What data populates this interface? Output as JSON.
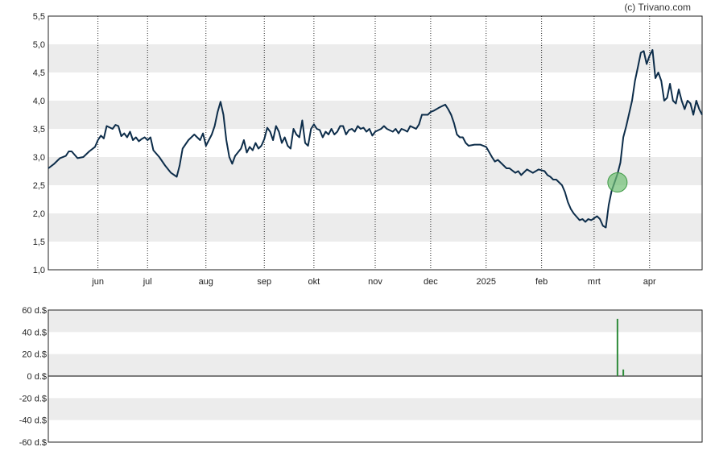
{
  "credit": "(c) Trivano.com",
  "colors": {
    "price_line": "#0d2d4a",
    "band": "#ececec",
    "volume_bar": "#2e8b3a",
    "marker_fill": "#6fbf73",
    "marker_stroke": "#3f9a46",
    "grid": "#222222"
  },
  "chart_data": [
    {
      "type": "line",
      "ylim": [
        1.0,
        5.5
      ],
      "y_ticks": [
        "1,0",
        "1,5",
        "2,0",
        "2,5",
        "3,0",
        "3,5",
        "4,0",
        "4,5",
        "5,0",
        "5,5"
      ],
      "x_ticks": [
        "jun",
        "jul",
        "aug",
        "sep",
        "okt",
        "nov",
        "dec",
        "2025",
        "feb",
        "mrt",
        "apr"
      ],
      "x_tick_positions": [
        8.5,
        17,
        27,
        37,
        45.5,
        56,
        65.5,
        75,
        84.5,
        93.5,
        103
      ],
      "xlim": [
        0,
        112
      ],
      "grid": "vertical dotted at month ticks, alternating horizontal bands",
      "marker": {
        "x": 97.5,
        "y": 2.55
      },
      "series": [
        {
          "values": [
            [
              0,
              2.8
            ],
            [
              1,
              2.88
            ],
            [
              2,
              2.98
            ],
            [
              3,
              3.02
            ],
            [
              3.5,
              3.1
            ],
            [
              4,
              3.1
            ],
            [
              5,
              2.98
            ],
            [
              6,
              3.0
            ],
            [
              7,
              3.1
            ],
            [
              8,
              3.18
            ],
            [
              8.5,
              3.3
            ],
            [
              9,
              3.38
            ],
            [
              9.5,
              3.33
            ],
            [
              10,
              3.55
            ],
            [
              11,
              3.5
            ],
            [
              11.5,
              3.57
            ],
            [
              12,
              3.55
            ],
            [
              12.5,
              3.37
            ],
            [
              13,
              3.42
            ],
            [
              13.5,
              3.35
            ],
            [
              14,
              3.45
            ],
            [
              14.5,
              3.3
            ],
            [
              15,
              3.35
            ],
            [
              15.5,
              3.28
            ],
            [
              16,
              3.32
            ],
            [
              16.5,
              3.35
            ],
            [
              17,
              3.3
            ],
            [
              17.5,
              3.35
            ],
            [
              18,
              3.12
            ],
            [
              19,
              3.0
            ],
            [
              20,
              2.85
            ],
            [
              21,
              2.72
            ],
            [
              22,
              2.65
            ],
            [
              22.5,
              2.85
            ],
            [
              23,
              3.15
            ],
            [
              24,
              3.3
            ],
            [
              25,
              3.4
            ],
            [
              26,
              3.3
            ],
            [
              26.5,
              3.42
            ],
            [
              27,
              3.2
            ],
            [
              28,
              3.4
            ],
            [
              28.5,
              3.55
            ],
            [
              29,
              3.8
            ],
            [
              29.5,
              3.98
            ],
            [
              30,
              3.75
            ],
            [
              30.5,
              3.3
            ],
            [
              31,
              3.0
            ],
            [
              31.5,
              2.88
            ],
            [
              32,
              3.02
            ],
            [
              33,
              3.15
            ],
            [
              33.5,
              3.3
            ],
            [
              34,
              3.08
            ],
            [
              34.5,
              3.18
            ],
            [
              35,
              3.12
            ],
            [
              35.5,
              3.25
            ],
            [
              36,
              3.15
            ],
            [
              36.5,
              3.2
            ],
            [
              37,
              3.32
            ],
            [
              37.5,
              3.52
            ],
            [
              38,
              3.45
            ],
            [
              38.5,
              3.3
            ],
            [
              39,
              3.55
            ],
            [
              39.5,
              3.45
            ],
            [
              40,
              3.25
            ],
            [
              40.5,
              3.35
            ],
            [
              41,
              3.2
            ],
            [
              41.5,
              3.15
            ],
            [
              42,
              3.5
            ],
            [
              42.5,
              3.4
            ],
            [
              43,
              3.35
            ],
            [
              43.5,
              3.65
            ],
            [
              44,
              3.25
            ],
            [
              44.5,
              3.2
            ],
            [
              45,
              3.5
            ],
            [
              45.5,
              3.58
            ],
            [
              46,
              3.5
            ],
            [
              46.5,
              3.48
            ],
            [
              47,
              3.35
            ],
            [
              47.5,
              3.45
            ],
            [
              48,
              3.4
            ],
            [
              48.5,
              3.5
            ],
            [
              49,
              3.4
            ],
            [
              49.5,
              3.45
            ],
            [
              50,
              3.55
            ],
            [
              50.5,
              3.55
            ],
            [
              51,
              3.4
            ],
            [
              51.5,
              3.48
            ],
            [
              52,
              3.5
            ],
            [
              52.5,
              3.45
            ],
            [
              53,
              3.55
            ],
            [
              53.5,
              3.5
            ],
            [
              54,
              3.52
            ],
            [
              54.5,
              3.45
            ],
            [
              55,
              3.5
            ],
            [
              55.5,
              3.38
            ],
            [
              56,
              3.45
            ],
            [
              57,
              3.5
            ],
            [
              57.5,
              3.55
            ],
            [
              58,
              3.5
            ],
            [
              59,
              3.45
            ],
            [
              59.5,
              3.5
            ],
            [
              60,
              3.42
            ],
            [
              60.5,
              3.5
            ],
            [
              61,
              3.48
            ],
            [
              61.5,
              3.45
            ],
            [
              62,
              3.55
            ],
            [
              63,
              3.5
            ],
            [
              63.5,
              3.58
            ],
            [
              64,
              3.75
            ],
            [
              65,
              3.75
            ],
            [
              65.5,
              3.8
            ],
            [
              66,
              3.82
            ],
            [
              67,
              3.88
            ],
            [
              68,
              3.93
            ],
            [
              68.5,
              3.85
            ],
            [
              69,
              3.75
            ],
            [
              69.5,
              3.6
            ],
            [
              70,
              3.4
            ],
            [
              70.5,
              3.35
            ],
            [
              71,
              3.35
            ],
            [
              71.5,
              3.25
            ],
            [
              72,
              3.2
            ],
            [
              73,
              3.22
            ],
            [
              74,
              3.22
            ],
            [
              75,
              3.18
            ],
            [
              76,
              3.0
            ],
            [
              76.5,
              2.92
            ],
            [
              77,
              2.95
            ],
            [
              78,
              2.85
            ],
            [
              78.5,
              2.8
            ],
            [
              79,
              2.8
            ],
            [
              80,
              2.72
            ],
            [
              80.5,
              2.75
            ],
            [
              81,
              2.68
            ],
            [
              82,
              2.78
            ],
            [
              83,
              2.72
            ],
            [
              84,
              2.78
            ],
            [
              85,
              2.75
            ],
            [
              85.5,
              2.68
            ],
            [
              86,
              2.65
            ],
            [
              86.5,
              2.6
            ],
            [
              87,
              2.6
            ],
            [
              88,
              2.5
            ],
            [
              88.5,
              2.38
            ],
            [
              89,
              2.2
            ],
            [
              89.5,
              2.08
            ],
            [
              90,
              2.0
            ],
            [
              91,
              1.88
            ],
            [
              91.5,
              1.9
            ],
            [
              92,
              1.85
            ],
            [
              92.5,
              1.9
            ],
            [
              93,
              1.88
            ],
            [
              94,
              1.95
            ],
            [
              94.5,
              1.9
            ],
            [
              95,
              1.78
            ],
            [
              95.5,
              1.75
            ],
            [
              96,
              2.15
            ],
            [
              96.5,
              2.4
            ],
            [
              97,
              2.55
            ],
            [
              97.5,
              2.7
            ],
            [
              98,
              2.9
            ],
            [
              98.5,
              3.35
            ],
            [
              99,
              3.55
            ],
            [
              100,
              4.0
            ],
            [
              100.5,
              4.35
            ],
            [
              101,
              4.6
            ],
            [
              101.5,
              4.85
            ],
            [
              102,
              4.88
            ],
            [
              102.5,
              4.65
            ],
            [
              103,
              4.8
            ],
            [
              103.5,
              4.9
            ],
            [
              104,
              4.4
            ],
            [
              104.5,
              4.5
            ],
            [
              105,
              4.35
            ],
            [
              105.5,
              4.0
            ],
            [
              106,
              4.05
            ],
            [
              106.5,
              4.3
            ],
            [
              107,
              4.0
            ],
            [
              107.5,
              3.95
            ],
            [
              108,
              4.2
            ],
            [
              108.5,
              4.0
            ],
            [
              109,
              3.85
            ],
            [
              109.5,
              4.0
            ],
            [
              110,
              3.95
            ],
            [
              110.5,
              3.75
            ],
            [
              111,
              4.0
            ],
            [
              111.5,
              3.85
            ],
            [
              112,
              3.75
            ]
          ]
        }
      ]
    },
    {
      "type": "bar",
      "ylim": [
        -60,
        60
      ],
      "y_ticks": [
        "60 d.$",
        "40 d.$",
        "20 d.$",
        "0 d.$",
        "-20 d.$",
        "-40 d.$",
        "-60 d.$"
      ],
      "series": [
        {
          "values": [
            [
              97.5,
              52
            ],
            [
              98.5,
              6
            ]
          ]
        }
      ]
    }
  ]
}
